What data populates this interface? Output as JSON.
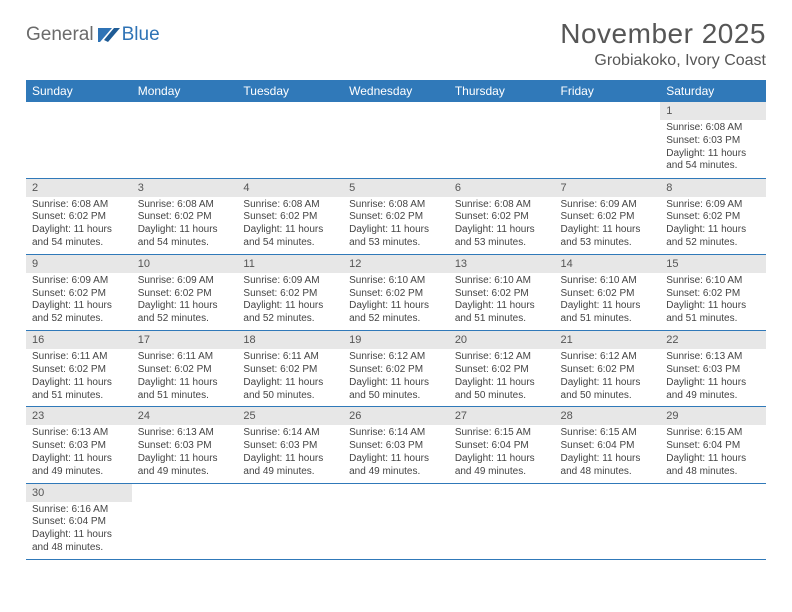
{
  "logo": {
    "general": "General",
    "blue": "Blue"
  },
  "title": {
    "month": "November 2025",
    "location": "Grobiakoko, Ivory Coast"
  },
  "styling": {
    "header_bg": "#3079b9",
    "header_fg": "#ffffff",
    "daynum_bg": "#e7e7e7",
    "row_border": "#3079b9",
    "text_color": "#444444",
    "title_color": "#565656",
    "logo_general_color": "#6b6b6b",
    "logo_blue_color": "#2f73b5",
    "page_bg": "#ffffff",
    "font_family": "Arial",
    "title_fontsize": 28,
    "location_fontsize": 16,
    "dayhead_fontsize": 12,
    "daynum_fontsize": 11,
    "body_fontsize": 10
  },
  "day_headers": [
    "Sunday",
    "Monday",
    "Tuesday",
    "Wednesday",
    "Thursday",
    "Friday",
    "Saturday"
  ],
  "weeks": [
    [
      null,
      null,
      null,
      null,
      null,
      null,
      {
        "n": "1",
        "sr": "6:08 AM",
        "ss": "6:03 PM",
        "dl": "11 hours and 54 minutes."
      }
    ],
    [
      {
        "n": "2",
        "sr": "6:08 AM",
        "ss": "6:02 PM",
        "dl": "11 hours and 54 minutes."
      },
      {
        "n": "3",
        "sr": "6:08 AM",
        "ss": "6:02 PM",
        "dl": "11 hours and 54 minutes."
      },
      {
        "n": "4",
        "sr": "6:08 AM",
        "ss": "6:02 PM",
        "dl": "11 hours and 54 minutes."
      },
      {
        "n": "5",
        "sr": "6:08 AM",
        "ss": "6:02 PM",
        "dl": "11 hours and 53 minutes."
      },
      {
        "n": "6",
        "sr": "6:08 AM",
        "ss": "6:02 PM",
        "dl": "11 hours and 53 minutes."
      },
      {
        "n": "7",
        "sr": "6:09 AM",
        "ss": "6:02 PM",
        "dl": "11 hours and 53 minutes."
      },
      {
        "n": "8",
        "sr": "6:09 AM",
        "ss": "6:02 PM",
        "dl": "11 hours and 52 minutes."
      }
    ],
    [
      {
        "n": "9",
        "sr": "6:09 AM",
        "ss": "6:02 PM",
        "dl": "11 hours and 52 minutes."
      },
      {
        "n": "10",
        "sr": "6:09 AM",
        "ss": "6:02 PM",
        "dl": "11 hours and 52 minutes."
      },
      {
        "n": "11",
        "sr": "6:09 AM",
        "ss": "6:02 PM",
        "dl": "11 hours and 52 minutes."
      },
      {
        "n": "12",
        "sr": "6:10 AM",
        "ss": "6:02 PM",
        "dl": "11 hours and 52 minutes."
      },
      {
        "n": "13",
        "sr": "6:10 AM",
        "ss": "6:02 PM",
        "dl": "11 hours and 51 minutes."
      },
      {
        "n": "14",
        "sr": "6:10 AM",
        "ss": "6:02 PM",
        "dl": "11 hours and 51 minutes."
      },
      {
        "n": "15",
        "sr": "6:10 AM",
        "ss": "6:02 PM",
        "dl": "11 hours and 51 minutes."
      }
    ],
    [
      {
        "n": "16",
        "sr": "6:11 AM",
        "ss": "6:02 PM",
        "dl": "11 hours and 51 minutes."
      },
      {
        "n": "17",
        "sr": "6:11 AM",
        "ss": "6:02 PM",
        "dl": "11 hours and 51 minutes."
      },
      {
        "n": "18",
        "sr": "6:11 AM",
        "ss": "6:02 PM",
        "dl": "11 hours and 50 minutes."
      },
      {
        "n": "19",
        "sr": "6:12 AM",
        "ss": "6:02 PM",
        "dl": "11 hours and 50 minutes."
      },
      {
        "n": "20",
        "sr": "6:12 AM",
        "ss": "6:02 PM",
        "dl": "11 hours and 50 minutes."
      },
      {
        "n": "21",
        "sr": "6:12 AM",
        "ss": "6:02 PM",
        "dl": "11 hours and 50 minutes."
      },
      {
        "n": "22",
        "sr": "6:13 AM",
        "ss": "6:03 PM",
        "dl": "11 hours and 49 minutes."
      }
    ],
    [
      {
        "n": "23",
        "sr": "6:13 AM",
        "ss": "6:03 PM",
        "dl": "11 hours and 49 minutes."
      },
      {
        "n": "24",
        "sr": "6:13 AM",
        "ss": "6:03 PM",
        "dl": "11 hours and 49 minutes."
      },
      {
        "n": "25",
        "sr": "6:14 AM",
        "ss": "6:03 PM",
        "dl": "11 hours and 49 minutes."
      },
      {
        "n": "26",
        "sr": "6:14 AM",
        "ss": "6:03 PM",
        "dl": "11 hours and 49 minutes."
      },
      {
        "n": "27",
        "sr": "6:15 AM",
        "ss": "6:04 PM",
        "dl": "11 hours and 49 minutes."
      },
      {
        "n": "28",
        "sr": "6:15 AM",
        "ss": "6:04 PM",
        "dl": "11 hours and 48 minutes."
      },
      {
        "n": "29",
        "sr": "6:15 AM",
        "ss": "6:04 PM",
        "dl": "11 hours and 48 minutes."
      }
    ],
    [
      {
        "n": "30",
        "sr": "6:16 AM",
        "ss": "6:04 PM",
        "dl": "11 hours and 48 minutes."
      },
      null,
      null,
      null,
      null,
      null,
      null
    ]
  ],
  "labels": {
    "sunrise": "Sunrise:",
    "sunset": "Sunset:",
    "daylight": "Daylight:"
  }
}
